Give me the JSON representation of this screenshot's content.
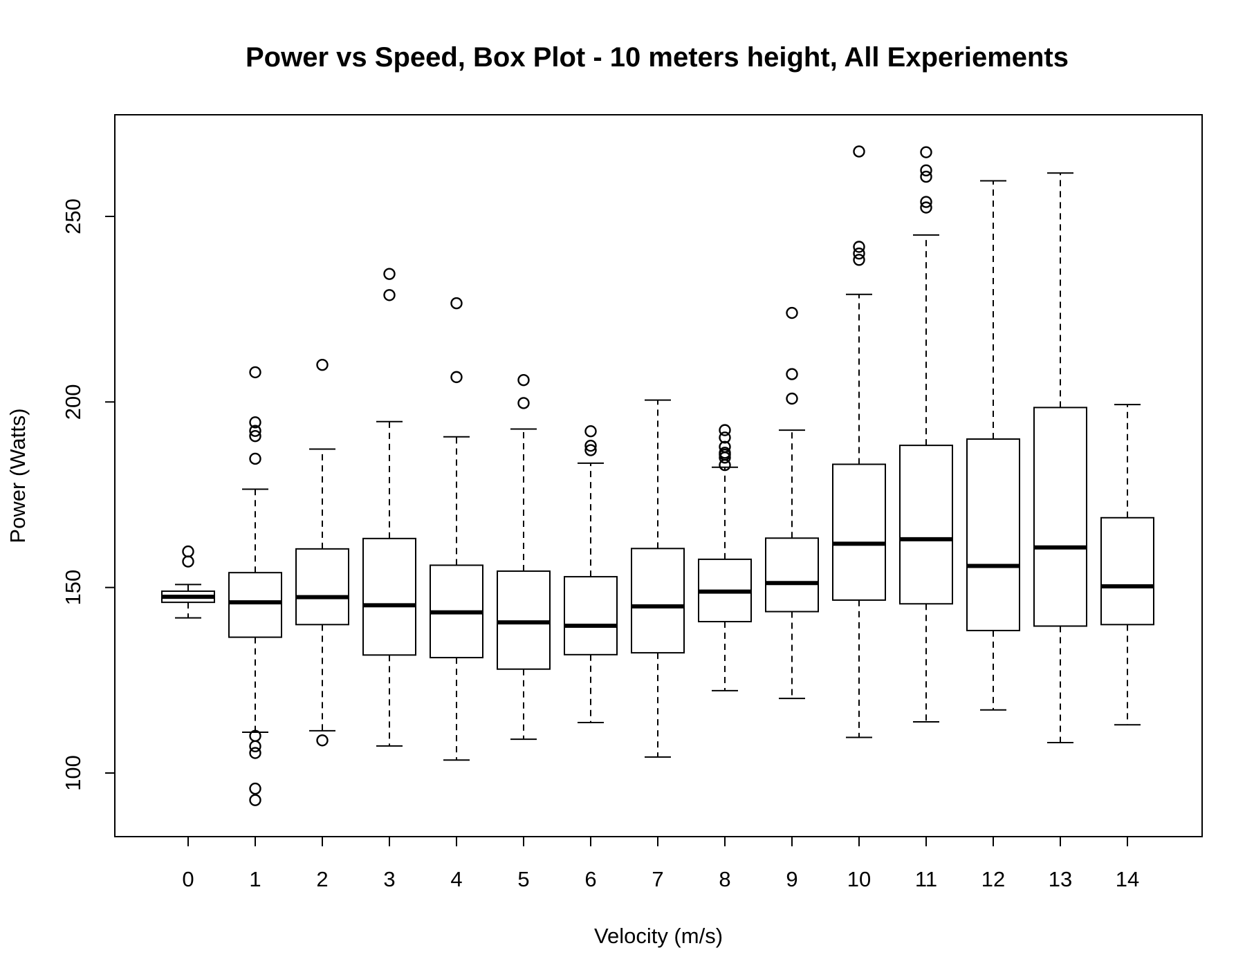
{
  "chart_data": {
    "type": "boxplot",
    "title": "Power vs Speed, Box Plot - 10 meters height, All Experiements",
    "xlabel": "Velocity (m/s)",
    "ylabel": "Power (Watts)",
    "ylim": [
      83,
      277
    ],
    "y_ticks": [
      "100",
      "150",
      "200",
      "250"
    ],
    "y_tick_values": [
      100,
      150,
      200,
      250
    ],
    "grid": false,
    "legend": "none",
    "colors": {
      "stroke": "#000000",
      "background": "#ffffff"
    },
    "categories": [
      "0",
      "1",
      "2",
      "3",
      "4",
      "5",
      "6",
      "7",
      "8",
      "9",
      "10",
      "11",
      "12",
      "13",
      "14"
    ],
    "boxes": [
      {
        "category": "0",
        "whisker_low": 141.8,
        "q1": 146.0,
        "median": 147.5,
        "q3": 149.0,
        "whisker_high": 150.8,
        "outliers": [
          157.0,
          159.7
        ]
      },
      {
        "category": "1",
        "whisker_low": 111.0,
        "q1": 136.6,
        "median": 146.0,
        "q3": 154.0,
        "whisker_high": 176.5,
        "outliers": [
          92.7,
          95.8,
          105.4,
          107.2,
          110.0,
          184.7,
          190.8,
          192.2,
          194.5,
          208.0
        ]
      },
      {
        "category": "2",
        "whisker_low": 111.4,
        "q1": 140.0,
        "median": 147.4,
        "q3": 160.4,
        "whisker_high": 187.3,
        "outliers": [
          108.8,
          210.0
        ]
      },
      {
        "category": "3",
        "whisker_low": 107.3,
        "q1": 131.8,
        "median": 145.2,
        "q3": 163.2,
        "whisker_high": 194.7,
        "outliers": [
          228.8,
          234.5
        ]
      },
      {
        "category": "4",
        "whisker_low": 103.5,
        "q1": 131.1,
        "median": 143.3,
        "q3": 156.0,
        "whisker_high": 190.6,
        "outliers": [
          206.7,
          226.6
        ]
      },
      {
        "category": "5",
        "whisker_low": 109.1,
        "q1": 128.0,
        "median": 140.6,
        "q3": 154.4,
        "whisker_high": 192.7,
        "outliers": [
          199.7,
          205.9
        ]
      },
      {
        "category": "6",
        "whisker_low": 113.6,
        "q1": 131.9,
        "median": 139.7,
        "q3": 152.9,
        "whisker_high": 183.5,
        "outliers": [
          187.0,
          188.2,
          192.1
        ]
      },
      {
        "category": "7",
        "whisker_low": 104.3,
        "q1": 132.4,
        "median": 144.9,
        "q3": 160.5,
        "whisker_high": 200.5,
        "outliers": []
      },
      {
        "category": "8",
        "whisker_low": 122.2,
        "q1": 140.8,
        "median": 148.9,
        "q3": 157.6,
        "whisker_high": 182.4,
        "outliers": [
          183.0,
          185.0,
          185.8,
          186.3,
          187.9,
          190.4,
          192.4
        ]
      },
      {
        "category": "9",
        "whisker_low": 120.1,
        "q1": 143.5,
        "median": 151.2,
        "q3": 163.3,
        "whisker_high": 192.4,
        "outliers": [
          200.9,
          207.5,
          224.0
        ]
      },
      {
        "category": "10",
        "whisker_low": 109.6,
        "q1": 146.6,
        "median": 161.8,
        "q3": 183.2,
        "whisker_high": 229.0,
        "outliers": [
          238.3,
          240.0,
          241.8,
          267.5
        ]
      },
      {
        "category": "11",
        "whisker_low": 113.8,
        "q1": 145.6,
        "median": 163.0,
        "q3": 188.3,
        "whisker_high": 245.0,
        "outliers": [
          252.4,
          253.9,
          260.7,
          262.4,
          267.3
        ]
      },
      {
        "category": "12",
        "whisker_low": 117.0,
        "q1": 138.4,
        "median": 155.8,
        "q3": 190.0,
        "whisker_high": 259.6,
        "outliers": []
      },
      {
        "category": "13",
        "whisker_low": 108.2,
        "q1": 139.6,
        "median": 160.8,
        "q3": 198.5,
        "whisker_high": 261.7,
        "outliers": []
      },
      {
        "category": "14",
        "whisker_low": 113.0,
        "q1": 140.0,
        "median": 150.3,
        "q3": 168.8,
        "whisker_high": 199.3,
        "outliers": []
      }
    ]
  }
}
